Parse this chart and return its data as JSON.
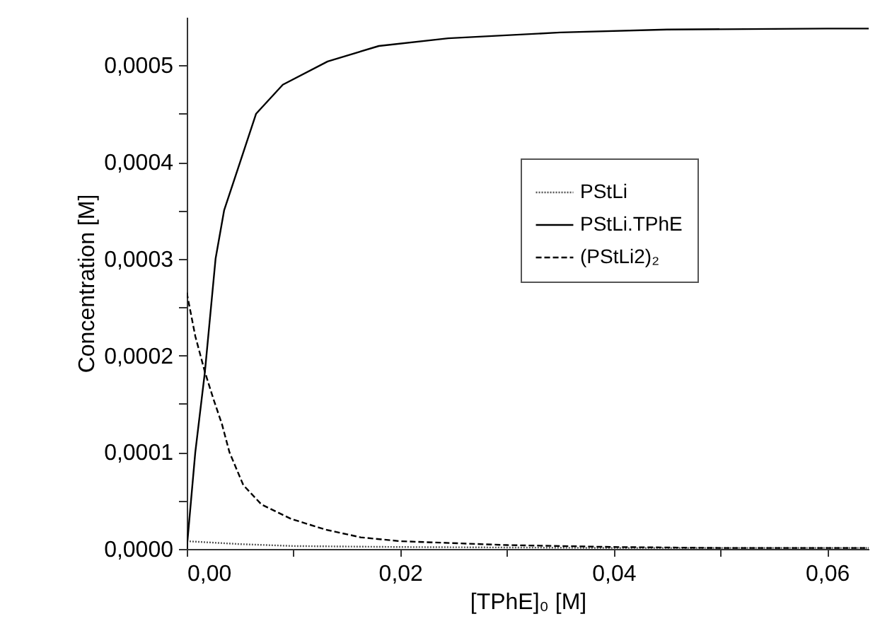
{
  "chart_data": {
    "type": "line",
    "xlabel": "[TPhE]₀ [M]",
    "ylabel": "Concentration [M]",
    "xlim": [
      0,
      0.0639
    ],
    "ylim": [
      0,
      0.00055
    ],
    "xticks": [
      {
        "value": 0,
        "label": "0,00"
      },
      {
        "value": 0.01,
        "label": null
      },
      {
        "value": 0.02,
        "label": "0,02"
      },
      {
        "value": 0.03,
        "label": null
      },
      {
        "value": 0.04,
        "label": "0,04"
      },
      {
        "value": 0.05,
        "label": null
      },
      {
        "value": 0.06,
        "label": "0,06"
      }
    ],
    "yticks": [
      {
        "value": 0,
        "label": "0,0000"
      },
      {
        "value": 5e-05,
        "label": null
      },
      {
        "value": 0.0001,
        "label": "0,0001"
      },
      {
        "value": 0.00015,
        "label": null
      },
      {
        "value": 0.0002,
        "label": "0,0002"
      },
      {
        "value": 0.00025,
        "label": null
      },
      {
        "value": 0.0003,
        "label": "0,0003"
      },
      {
        "value": 0.00035,
        "label": null
      },
      {
        "value": 0.0004,
        "label": "0,0004"
      },
      {
        "value": 0.00045,
        "label": null
      },
      {
        "value": 0.0005,
        "label": "0,0005"
      }
    ],
    "grid": false,
    "legend": "right",
    "marker": "none",
    "series": [
      {
        "name": "PStLi",
        "color": "#555555",
        "line_style": "dotted",
        "x": [
          0,
          0.005,
          0.01,
          0.02,
          0.04,
          0.0639
        ],
        "values": [
          8e-06,
          5e-06,
          3e-06,
          2e-06,
          1e-06,
          1e-06
        ]
      },
      {
        "name": "PStLi.TPhE",
        "color": "#000000",
        "line_style": "solid",
        "x": [
          0,
          0.0008,
          0.0017,
          0.0027,
          0.0035,
          0.005,
          0.0065,
          0.009,
          0.0132,
          0.018,
          0.0245,
          0.035,
          0.045,
          0.06,
          0.0639
        ],
        "values": [
          0,
          0.0001,
          0.000183,
          0.0003,
          0.00035,
          0.0004,
          0.00045,
          0.00048,
          0.000504,
          0.00052,
          0.000528,
          0.000534,
          0.000537,
          0.000538,
          0.000538
        ]
      },
      {
        "name": "(PStLi2)₂",
        "color": "#000000",
        "line_style": "dashed",
        "x": [
          0,
          0.0008,
          0.0017,
          0.0025,
          0.0033,
          0.004,
          0.0053,
          0.007,
          0.0098,
          0.013,
          0.0163,
          0.02,
          0.03,
          0.04,
          0.05,
          0.0639
        ],
        "values": [
          0.000265,
          0.00022,
          0.000183,
          0.000155,
          0.000129,
          0.0001,
          6.6e-05,
          4.6e-05,
          3.1e-05,
          2e-05,
          1.2e-05,
          8e-06,
          4e-06,
          2e-06,
          1e-06,
          1e-06
        ]
      }
    ]
  }
}
